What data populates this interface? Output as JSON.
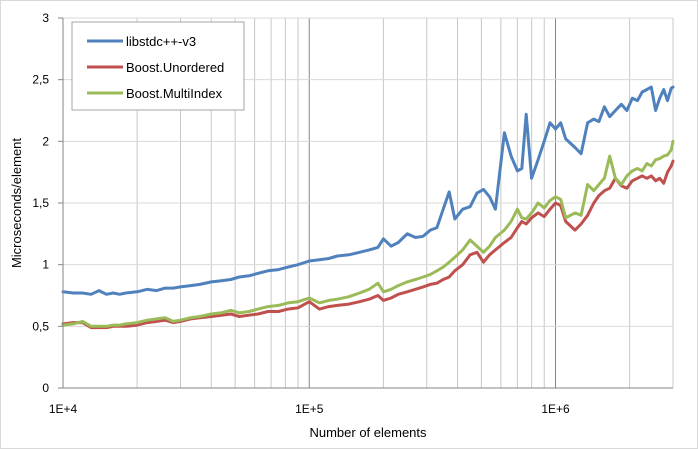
{
  "chart_data": {
    "type": "line",
    "title": "",
    "xlabel": "Number of elements",
    "ylabel": "Microseconds/element",
    "xscale": "log",
    "xlim": [
      10000,
      3000000
    ],
    "ylim": [
      0,
      3
    ],
    "xticks": [
      {
        "value": 10000,
        "label": "1E+4"
      },
      {
        "value": 100000,
        "label": "1E+5"
      },
      {
        "value": 1000000,
        "label": "1E+6"
      }
    ],
    "yticks": [
      {
        "value": 0,
        "label": "0"
      },
      {
        "value": 0.5,
        "label": "0,5"
      },
      {
        "value": 1,
        "label": "1"
      },
      {
        "value": 1.5,
        "label": "1,5"
      },
      {
        "value": 2,
        "label": "2"
      },
      {
        "value": 2.5,
        "label": "2,5"
      },
      {
        "value": 3,
        "label": "3"
      }
    ],
    "grid": "vertical log minor gridlines, horizontal major gridlines",
    "legend_position": "top-left",
    "series": [
      {
        "name": "libstdc++-v3",
        "color": "#4F81BD",
        "points": [
          [
            10000,
            0.78
          ],
          [
            11000,
            0.77
          ],
          [
            12000,
            0.77
          ],
          [
            13000,
            0.76
          ],
          [
            14000,
            0.79
          ],
          [
            15000,
            0.76
          ],
          [
            16000,
            0.77
          ],
          [
            17000,
            0.76
          ],
          [
            18000,
            0.77
          ],
          [
            20000,
            0.78
          ],
          [
            22000,
            0.8
          ],
          [
            24000,
            0.79
          ],
          [
            26000,
            0.81
          ],
          [
            28000,
            0.81
          ],
          [
            30000,
            0.82
          ],
          [
            33000,
            0.83
          ],
          [
            36000,
            0.84
          ],
          [
            40000,
            0.86
          ],
          [
            44000,
            0.87
          ],
          [
            48000,
            0.88
          ],
          [
            52000,
            0.9
          ],
          [
            57000,
            0.91
          ],
          [
            62000,
            0.93
          ],
          [
            68000,
            0.95
          ],
          [
            75000,
            0.96
          ],
          [
            82000,
            0.98
          ],
          [
            90000,
            1.0
          ],
          [
            100000,
            1.03
          ],
          [
            110000,
            1.04
          ],
          [
            120000,
            1.05
          ],
          [
            130000,
            1.07
          ],
          [
            145000,
            1.08
          ],
          [
            160000,
            1.1
          ],
          [
            175000,
            1.12
          ],
          [
            190000,
            1.14
          ],
          [
            200000,
            1.21
          ],
          [
            215000,
            1.15
          ],
          [
            230000,
            1.18
          ],
          [
            250000,
            1.25
          ],
          [
            270000,
            1.22
          ],
          [
            290000,
            1.23
          ],
          [
            310000,
            1.28
          ],
          [
            330000,
            1.3
          ],
          [
            350000,
            1.45
          ],
          [
            370000,
            1.59
          ],
          [
            390000,
            1.37
          ],
          [
            420000,
            1.45
          ],
          [
            450000,
            1.47
          ],
          [
            480000,
            1.58
          ],
          [
            510000,
            1.61
          ],
          [
            540000,
            1.55
          ],
          [
            570000,
            1.45
          ],
          [
            620000,
            2.07
          ],
          [
            660000,
            1.88
          ],
          [
            700000,
            1.76
          ],
          [
            730000,
            1.78
          ],
          [
            760000,
            2.22
          ],
          [
            800000,
            1.7
          ],
          [
            850000,
            1.85
          ],
          [
            900000,
            2.0
          ],
          [
            950000,
            2.15
          ],
          [
            1000000,
            2.1
          ],
          [
            1050000,
            2.15
          ],
          [
            1100000,
            2.02
          ],
          [
            1200000,
            1.95
          ],
          [
            1270000,
            1.9
          ],
          [
            1350000,
            2.15
          ],
          [
            1430000,
            2.18
          ],
          [
            1500000,
            2.16
          ],
          [
            1580000,
            2.28
          ],
          [
            1660000,
            2.2
          ],
          [
            1750000,
            2.25
          ],
          [
            1850000,
            2.3
          ],
          [
            1950000,
            2.25
          ],
          [
            2050000,
            2.35
          ],
          [
            2150000,
            2.33
          ],
          [
            2250000,
            2.4
          ],
          [
            2350000,
            2.42
          ],
          [
            2450000,
            2.44
          ],
          [
            2550000,
            2.25
          ],
          [
            2650000,
            2.35
          ],
          [
            2750000,
            2.42
          ],
          [
            2850000,
            2.33
          ],
          [
            2950000,
            2.43
          ],
          [
            3000000,
            2.44
          ]
        ]
      },
      {
        "name": "Boost.Unordered",
        "color": "#C0504D",
        "points": [
          [
            10000,
            0.52
          ],
          [
            11000,
            0.53
          ],
          [
            12000,
            0.53
          ],
          [
            13000,
            0.49
          ],
          [
            14000,
            0.49
          ],
          [
            15000,
            0.49
          ],
          [
            16000,
            0.5
          ],
          [
            17000,
            0.5
          ],
          [
            18000,
            0.5
          ],
          [
            20000,
            0.51
          ],
          [
            22000,
            0.53
          ],
          [
            24000,
            0.54
          ],
          [
            26000,
            0.55
          ],
          [
            28000,
            0.53
          ],
          [
            30000,
            0.54
          ],
          [
            33000,
            0.56
          ],
          [
            36000,
            0.57
          ],
          [
            40000,
            0.58
          ],
          [
            44000,
            0.59
          ],
          [
            48000,
            0.6
          ],
          [
            52000,
            0.58
          ],
          [
            57000,
            0.59
          ],
          [
            62000,
            0.6
          ],
          [
            68000,
            0.62
          ],
          [
            75000,
            0.62
          ],
          [
            82000,
            0.64
          ],
          [
            90000,
            0.65
          ],
          [
            100000,
            0.7
          ],
          [
            110000,
            0.64
          ],
          [
            120000,
            0.66
          ],
          [
            130000,
            0.67
          ],
          [
            145000,
            0.68
          ],
          [
            160000,
            0.7
          ],
          [
            175000,
            0.72
          ],
          [
            190000,
            0.75
          ],
          [
            200000,
            0.71
          ],
          [
            215000,
            0.73
          ],
          [
            230000,
            0.76
          ],
          [
            250000,
            0.78
          ],
          [
            270000,
            0.8
          ],
          [
            290000,
            0.82
          ],
          [
            310000,
            0.84
          ],
          [
            330000,
            0.85
          ],
          [
            350000,
            0.88
          ],
          [
            370000,
            0.9
          ],
          [
            390000,
            0.95
          ],
          [
            420000,
            1.0
          ],
          [
            450000,
            1.08
          ],
          [
            480000,
            1.1
          ],
          [
            510000,
            1.02
          ],
          [
            540000,
            1.08
          ],
          [
            570000,
            1.12
          ],
          [
            620000,
            1.18
          ],
          [
            660000,
            1.22
          ],
          [
            700000,
            1.3
          ],
          [
            730000,
            1.35
          ],
          [
            760000,
            1.33
          ],
          [
            800000,
            1.38
          ],
          [
            850000,
            1.42
          ],
          [
            900000,
            1.39
          ],
          [
            950000,
            1.45
          ],
          [
            1000000,
            1.5
          ],
          [
            1050000,
            1.48
          ],
          [
            1100000,
            1.35
          ],
          [
            1200000,
            1.28
          ],
          [
            1270000,
            1.33
          ],
          [
            1350000,
            1.4
          ],
          [
            1430000,
            1.5
          ],
          [
            1500000,
            1.56
          ],
          [
            1580000,
            1.6
          ],
          [
            1660000,
            1.62
          ],
          [
            1750000,
            1.7
          ],
          [
            1850000,
            1.64
          ],
          [
            1950000,
            1.62
          ],
          [
            2050000,
            1.68
          ],
          [
            2150000,
            1.7
          ],
          [
            2250000,
            1.72
          ],
          [
            2350000,
            1.7
          ],
          [
            2450000,
            1.72
          ],
          [
            2550000,
            1.68
          ],
          [
            2650000,
            1.7
          ],
          [
            2750000,
            1.66
          ],
          [
            2850000,
            1.75
          ],
          [
            2950000,
            1.8
          ],
          [
            3000000,
            1.84
          ]
        ]
      },
      {
        "name": "Boost.MultiIndex",
        "color": "#9BBB59",
        "points": [
          [
            10000,
            0.51
          ],
          [
            11000,
            0.52
          ],
          [
            12000,
            0.54
          ],
          [
            13000,
            0.5
          ],
          [
            14000,
            0.5
          ],
          [
            15000,
            0.5
          ],
          [
            16000,
            0.51
          ],
          [
            17000,
            0.51
          ],
          [
            18000,
            0.52
          ],
          [
            20000,
            0.53
          ],
          [
            22000,
            0.55
          ],
          [
            24000,
            0.56
          ],
          [
            26000,
            0.57
          ],
          [
            28000,
            0.54
          ],
          [
            30000,
            0.55
          ],
          [
            33000,
            0.57
          ],
          [
            36000,
            0.58
          ],
          [
            40000,
            0.6
          ],
          [
            44000,
            0.61
          ],
          [
            48000,
            0.63
          ],
          [
            52000,
            0.61
          ],
          [
            57000,
            0.62
          ],
          [
            62000,
            0.64
          ],
          [
            68000,
            0.66
          ],
          [
            75000,
            0.67
          ],
          [
            82000,
            0.69
          ],
          [
            90000,
            0.7
          ],
          [
            100000,
            0.73
          ],
          [
            110000,
            0.69
          ],
          [
            120000,
            0.71
          ],
          [
            130000,
            0.72
          ],
          [
            145000,
            0.74
          ],
          [
            160000,
            0.77
          ],
          [
            175000,
            0.8
          ],
          [
            190000,
            0.85
          ],
          [
            200000,
            0.78
          ],
          [
            215000,
            0.8
          ],
          [
            230000,
            0.83
          ],
          [
            250000,
            0.86
          ],
          [
            270000,
            0.88
          ],
          [
            290000,
            0.9
          ],
          [
            310000,
            0.92
          ],
          [
            330000,
            0.95
          ],
          [
            350000,
            0.98
          ],
          [
            370000,
            1.02
          ],
          [
            390000,
            1.06
          ],
          [
            420000,
            1.12
          ],
          [
            450000,
            1.2
          ],
          [
            480000,
            1.15
          ],
          [
            510000,
            1.1
          ],
          [
            540000,
            1.15
          ],
          [
            570000,
            1.22
          ],
          [
            620000,
            1.28
          ],
          [
            660000,
            1.35
          ],
          [
            700000,
            1.45
          ],
          [
            730000,
            1.38
          ],
          [
            760000,
            1.37
          ],
          [
            800000,
            1.42
          ],
          [
            850000,
            1.5
          ],
          [
            900000,
            1.46
          ],
          [
            950000,
            1.52
          ],
          [
            1000000,
            1.55
          ],
          [
            1050000,
            1.53
          ],
          [
            1100000,
            1.38
          ],
          [
            1200000,
            1.42
          ],
          [
            1270000,
            1.4
          ],
          [
            1350000,
            1.65
          ],
          [
            1430000,
            1.6
          ],
          [
            1500000,
            1.65
          ],
          [
            1580000,
            1.7
          ],
          [
            1660000,
            1.88
          ],
          [
            1750000,
            1.7
          ],
          [
            1850000,
            1.65
          ],
          [
            1950000,
            1.72
          ],
          [
            2050000,
            1.76
          ],
          [
            2150000,
            1.78
          ],
          [
            2250000,
            1.76
          ],
          [
            2350000,
            1.82
          ],
          [
            2450000,
            1.8
          ],
          [
            2550000,
            1.85
          ],
          [
            2650000,
            1.86
          ],
          [
            2750000,
            1.88
          ],
          [
            2850000,
            1.89
          ],
          [
            2950000,
            1.93
          ],
          [
            3000000,
            2.0
          ]
        ]
      }
    ]
  }
}
